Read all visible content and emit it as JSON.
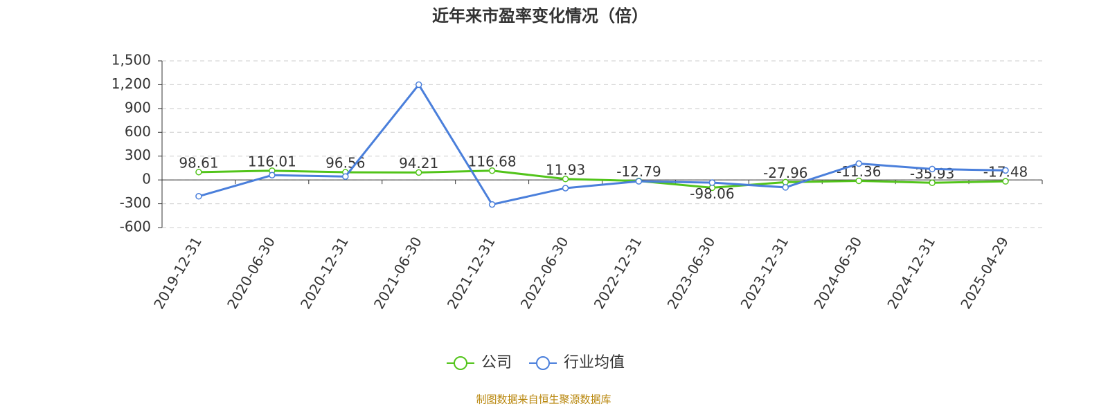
{
  "chart_data": {
    "type": "line",
    "title": "近年来市盈率变化情况（倍）",
    "categories": [
      "2019-12-31",
      "2020-06-30",
      "2020-12-31",
      "2021-06-30",
      "2021-12-31",
      "2022-06-30",
      "2022-12-31",
      "2023-06-30",
      "2023-12-31",
      "2024-06-30",
      "2024-12-31",
      "2025-04-29"
    ],
    "series": [
      {
        "name": "公司",
        "color": "#52c41a",
        "values": [
          98.61,
          116.01,
          96.56,
          94.21,
          116.68,
          11.93,
          -12.79,
          -98.06,
          -27.96,
          -11.36,
          -35.93,
          -17.48
        ]
      },
      {
        "name": "行业均值",
        "color": "#4a7fdb",
        "values": [
          -206,
          60,
          43,
          1200,
          -309,
          -103,
          -17,
          -34,
          -94,
          206,
          137,
          120
        ]
      }
    ],
    "ylim": [
      -600,
      1500
    ],
    "yticks": [
      -600,
      -300,
      0,
      300,
      600,
      900,
      {
        "value": 1200,
        "label": "1,200"
      },
      {
        "value": 1500,
        "label": "1,500"
      }
    ],
    "grid": true,
    "note": "制图数据来自恒生聚源数据库"
  }
}
